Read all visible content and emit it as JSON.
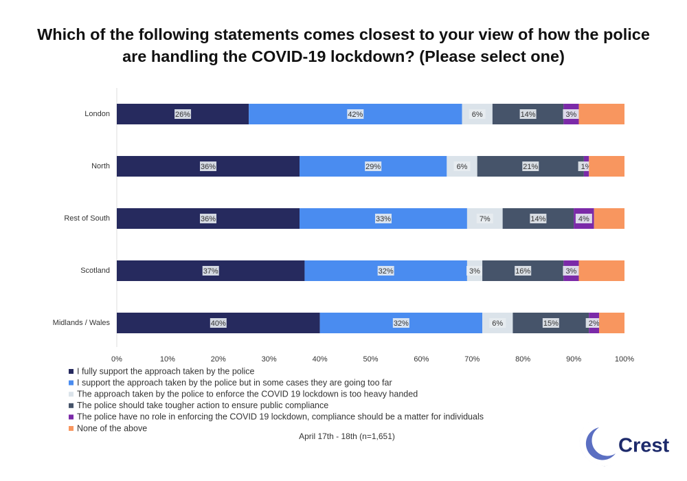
{
  "chart_data": {
    "type": "stacked-bar-horizontal",
    "title": "Which of the following statements comes closest to your view of how the police are handling the COVID-19 lockdown? (Please select one)",
    "categories": [
      "London",
      "North",
      "Rest of South",
      "Scotland",
      "Midlands / Wales"
    ],
    "series": [
      {
        "name": "I fully support the approach taken by the police",
        "color": "#262a5e",
        "values": [
          26,
          36,
          36,
          37,
          40
        ],
        "value_labels": [
          "26%",
          "36%",
          "36%",
          "37%",
          "40%"
        ]
      },
      {
        "name": "I support the approach taken by the police but in some cases they are going too far",
        "color": "#4a8cf0",
        "values": [
          42,
          29,
          33,
          32,
          32
        ],
        "value_labels": [
          "42%",
          "29%",
          "33%",
          "32%",
          "32%"
        ]
      },
      {
        "name": "The approach taken by the police to enforce the COVID 19 lockdown is too heavy handed",
        "color": "#dbe3ea",
        "values": [
          6,
          6,
          7,
          3,
          6
        ],
        "value_labels": [
          "6%",
          "6%",
          "7%",
          "3%",
          "6%"
        ]
      },
      {
        "name": "The police should take tougher action to ensure public compliance",
        "color": "#46546a",
        "values": [
          14,
          21,
          14,
          16,
          15
        ],
        "value_labels": [
          "14%",
          "21%",
          "14%",
          "16%",
          "15%"
        ]
      },
      {
        "name": "The police have no role in enforcing the COVID 19 lockdown, compliance should be a matter for individuals",
        "color": "#7b2aa8",
        "values": [
          3,
          1,
          4,
          3,
          2
        ],
        "value_labels": [
          "3%",
          "1%",
          "4%",
          "3%",
          "2%"
        ]
      },
      {
        "name": "None of the above",
        "color": "#f8965f",
        "values": [
          9,
          7,
          6,
          9,
          5
        ]
      }
    ],
    "xlim": [
      0,
      100
    ],
    "xticks": [
      {
        "value": 0,
        "label": "0%"
      },
      {
        "value": 10,
        "label": "10%"
      },
      {
        "value": 20,
        "label": "20%"
      },
      {
        "value": 30,
        "label": "30%"
      },
      {
        "value": 40,
        "label": "40%"
      },
      {
        "value": 50,
        "label": "50%"
      },
      {
        "value": 60,
        "label": "60%"
      },
      {
        "value": 70,
        "label": "70%"
      },
      {
        "value": 80,
        "label": "80%"
      },
      {
        "value": 90,
        "label": "90%"
      },
      {
        "value": 100,
        "label": "100%"
      }
    ],
    "grid": false,
    "legend": "bottom-left",
    "footnote": "April 17th - 18th (n=1,651)",
    "logo": "Crest"
  }
}
